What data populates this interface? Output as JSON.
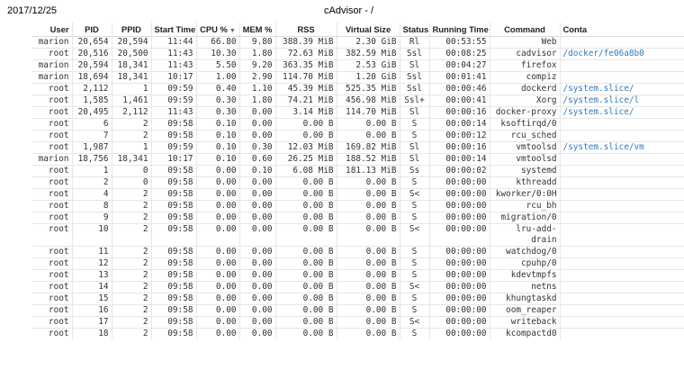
{
  "print_header": {
    "date": "2017/12/25",
    "title": "cAdvisor - /"
  },
  "columns": [
    {
      "key": "user",
      "label": "User"
    },
    {
      "key": "pid",
      "label": "PID"
    },
    {
      "key": "ppid",
      "label": "PPID"
    },
    {
      "key": "start",
      "label": "Start Time"
    },
    {
      "key": "cpu",
      "label": "CPU %",
      "sorted": "desc"
    },
    {
      "key": "mem",
      "label": "MEM %"
    },
    {
      "key": "rss",
      "label": "RSS"
    },
    {
      "key": "vsz",
      "label": "Virtual Size"
    },
    {
      "key": "status",
      "label": "Status"
    },
    {
      "key": "running",
      "label": "Running Time"
    },
    {
      "key": "cmd",
      "label": "Command"
    },
    {
      "key": "container",
      "label": "Conta"
    }
  ],
  "rows": [
    {
      "user": "marion",
      "pid": "20,654",
      "ppid": "20,594",
      "start": "11:44",
      "cpu": "66.80",
      "mem": "9.80",
      "rss": "388.39 MiB",
      "vsz": "2.30 GiB",
      "status": "Rl",
      "running": "00:53:55",
      "cmd": "Web",
      "container": ""
    },
    {
      "user": "root",
      "pid": "20,516",
      "ppid": "20,500",
      "start": "11:43",
      "cpu": "10.30",
      "mem": "1.80",
      "rss": "72.63 MiB",
      "vsz": "382.59 MiB",
      "status": "Ssl",
      "running": "00:08:25",
      "cmd": "cadvisor",
      "container": "/docker/fe06a8b0"
    },
    {
      "user": "marion",
      "pid": "20,594",
      "ppid": "18,341",
      "start": "11:43",
      "cpu": "5.50",
      "mem": "9.20",
      "rss": "363.35 MiB",
      "vsz": "2.53 GiB",
      "status": "Sl",
      "running": "00:04:27",
      "cmd": "firefox",
      "container": ""
    },
    {
      "user": "marion",
      "pid": "18,694",
      "ppid": "18,341",
      "start": "10:17",
      "cpu": "1.00",
      "mem": "2.90",
      "rss": "114.70 MiB",
      "vsz": "1.20 GiB",
      "status": "Ssl",
      "running": "00:01:41",
      "cmd": "compiz",
      "container": ""
    },
    {
      "user": "root",
      "pid": "2,112",
      "ppid": "1",
      "start": "09:59",
      "cpu": "0.40",
      "mem": "1.10",
      "rss": "45.39 MiB",
      "vsz": "525.35 MiB",
      "status": "Ssl",
      "running": "00:00:46",
      "cmd": "dockerd",
      "container": "/system.slice/"
    },
    {
      "user": "root",
      "pid": "1,585",
      "ppid": "1,461",
      "start": "09:59",
      "cpu": "0.30",
      "mem": "1.80",
      "rss": "74.21 MiB",
      "vsz": "456.98 MiB",
      "status": "Ssl+",
      "running": "00:00:41",
      "cmd": "Xorg",
      "container": " /system.slice/l"
    },
    {
      "user": "root",
      "pid": "20,495",
      "ppid": "2,112",
      "start": "11:43",
      "cpu": "0.30",
      "mem": "0.00",
      "rss": "3.14 MiB",
      "vsz": "114.70 MiB",
      "status": "Sl",
      "running": "00:00:16",
      "cmd": "docker-proxy",
      "container": " /system.slice/"
    },
    {
      "user": "root",
      "pid": "6",
      "ppid": "2",
      "start": "09:58",
      "cpu": "0.10",
      "mem": "0.00",
      "rss": "0.00 B",
      "vsz": "0.00 B",
      "status": "S",
      "running": "00:00:14",
      "cmd": "ksoftirqd/0",
      "container": ""
    },
    {
      "user": "root",
      "pid": "7",
      "ppid": "2",
      "start": "09:58",
      "cpu": "0.10",
      "mem": "0.00",
      "rss": "0.00 B",
      "vsz": "0.00 B",
      "status": "S",
      "running": "00:00:12",
      "cmd": "rcu_sched",
      "container": ""
    },
    {
      "user": "root",
      "pid": "1,987",
      "ppid": "1",
      "start": "09:59",
      "cpu": "0.10",
      "mem": "0.30",
      "rss": "12.03 MiB",
      "vsz": "169.82 MiB",
      "status": "Sl",
      "running": "00:00:16",
      "cmd": "vmtoolsd",
      "container": "/system.slice/vm"
    },
    {
      "user": "marion",
      "pid": "18,756",
      "ppid": "18,341",
      "start": "10:17",
      "cpu": "0.10",
      "mem": "0.60",
      "rss": "26.25 MiB",
      "vsz": "188.52 MiB",
      "status": "Sl",
      "running": "00:00:14",
      "cmd": "vmtoolsd",
      "container": ""
    },
    {
      "user": "root",
      "pid": "1",
      "ppid": "0",
      "start": "09:58",
      "cpu": "0.00",
      "mem": "0.10",
      "rss": "6.08 MiB",
      "vsz": "181.13 MiB",
      "status": "Ss",
      "running": "00:00:02",
      "cmd": "systemd",
      "container": ""
    },
    {
      "user": "root",
      "pid": "2",
      "ppid": "0",
      "start": "09:58",
      "cpu": "0.00",
      "mem": "0.00",
      "rss": "0.00 B",
      "vsz": "0.00 B",
      "status": "S",
      "running": "00:00:00",
      "cmd": "kthreadd",
      "container": ""
    },
    {
      "user": "root",
      "pid": "4",
      "ppid": "2",
      "start": "09:58",
      "cpu": "0.00",
      "mem": "0.00",
      "rss": "0.00 B",
      "vsz": "0.00 B",
      "status": "S<",
      "running": "00:00:00",
      "cmd": "kworker/0:0H",
      "container": ""
    },
    {
      "user": "root",
      "pid": "8",
      "ppid": "2",
      "start": "09:58",
      "cpu": "0.00",
      "mem": "0.00",
      "rss": "0.00 B",
      "vsz": "0.00 B",
      "status": "S",
      "running": "00:00:00",
      "cmd": "rcu_bh",
      "container": ""
    },
    {
      "user": "root",
      "pid": "9",
      "ppid": "2",
      "start": "09:58",
      "cpu": "0.00",
      "mem": "0.00",
      "rss": "0.00 B",
      "vsz": "0.00 B",
      "status": "S",
      "running": "00:00:00",
      "cmd": "migration/0",
      "container": ""
    },
    {
      "user": "root",
      "pid": "10",
      "ppid": "2",
      "start": "09:58",
      "cpu": "0.00",
      "mem": "0.00",
      "rss": "0.00 B",
      "vsz": "0.00 B",
      "status": "S<",
      "running": "00:00:00",
      "cmd": "lru-add-drain",
      "container": ""
    },
    {
      "user": "root",
      "pid": "11",
      "ppid": "2",
      "start": "09:58",
      "cpu": "0.00",
      "mem": "0.00",
      "rss": "0.00 B",
      "vsz": "0.00 B",
      "status": "S",
      "running": "00:00:00",
      "cmd": "watchdog/0",
      "container": ""
    },
    {
      "user": "root",
      "pid": "12",
      "ppid": "2",
      "start": "09:58",
      "cpu": "0.00",
      "mem": "0.00",
      "rss": "0.00 B",
      "vsz": "0.00 B",
      "status": "S",
      "running": "00:00:00",
      "cmd": "cpuhp/0",
      "container": ""
    },
    {
      "user": "root",
      "pid": "13",
      "ppid": "2",
      "start": "09:58",
      "cpu": "0.00",
      "mem": "0.00",
      "rss": "0.00 B",
      "vsz": "0.00 B",
      "status": "S",
      "running": "00:00:00",
      "cmd": "kdevtmpfs",
      "container": ""
    },
    {
      "user": "root",
      "pid": "14",
      "ppid": "2",
      "start": "09:58",
      "cpu": "0.00",
      "mem": "0.00",
      "rss": "0.00 B",
      "vsz": "0.00 B",
      "status": "S<",
      "running": "00:00:00",
      "cmd": "netns",
      "container": ""
    },
    {
      "user": "root",
      "pid": "15",
      "ppid": "2",
      "start": "09:58",
      "cpu": "0.00",
      "mem": "0.00",
      "rss": "0.00 B",
      "vsz": "0.00 B",
      "status": "S",
      "running": "00:00:00",
      "cmd": "khungtaskd",
      "container": ""
    },
    {
      "user": "root",
      "pid": "16",
      "ppid": "2",
      "start": "09:58",
      "cpu": "0.00",
      "mem": "0.00",
      "rss": "0.00 B",
      "vsz": "0.00 B",
      "status": "S",
      "running": "00:00:00",
      "cmd": "oom_reaper",
      "container": ""
    },
    {
      "user": "root",
      "pid": "17",
      "ppid": "2",
      "start": "09:58",
      "cpu": "0.00",
      "mem": "0.00",
      "rss": "0.00 B",
      "vsz": "0.00 B",
      "status": "S<",
      "running": "00:00:00",
      "cmd": "writeback",
      "container": ""
    },
    {
      "user": "root",
      "pid": "18",
      "ppid": "2",
      "start": "09:58",
      "cpu": "0.00",
      "mem": "0.00",
      "rss": "0.00 B",
      "vsz": "0.00 B",
      "status": "S",
      "running": "00:00:00",
      "cmd": "kcompactd0",
      "container": ""
    }
  ],
  "colors": {
    "link": "#337ab7",
    "grid": "#e6e6e6",
    "text": "#333333"
  },
  "icons": {
    "sort_desc": "triangle-down-icon"
  }
}
